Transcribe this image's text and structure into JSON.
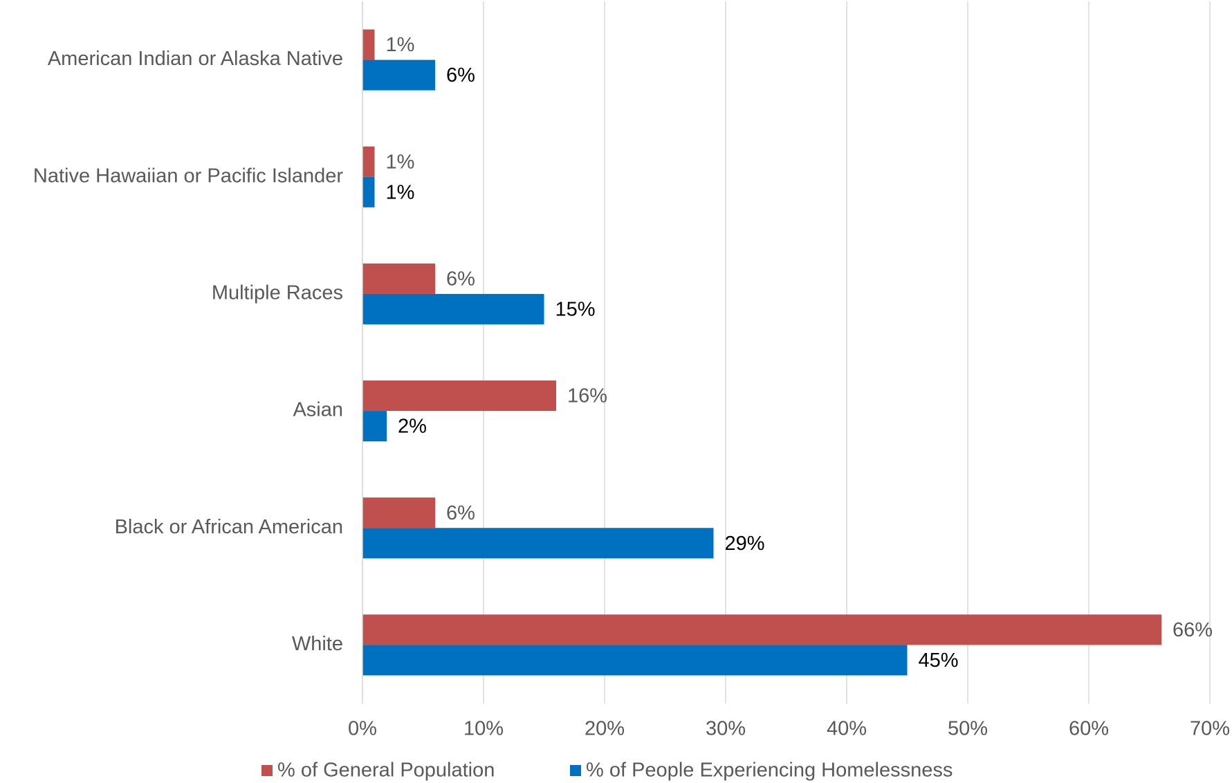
{
  "chart_data": {
    "type": "hbar",
    "categories": [
      "American Indian or Alaska Native",
      "Native Hawaiian or Pacific Islander",
      "Multiple Races",
      "Asian",
      "Black or African American",
      "White"
    ],
    "series": [
      {
        "name": "% of General Population",
        "color": "#c0504d",
        "values": [
          1,
          1,
          6,
          16,
          6,
          66
        ],
        "value_labels": [
          "1%",
          "1%",
          "6%",
          "16%",
          "6%",
          "66%"
        ]
      },
      {
        "name": "% of People Experiencing Homelessness",
        "color": "#0070c0",
        "values": [
          6,
          1,
          15,
          2,
          29,
          45
        ],
        "value_labels": [
          "6%",
          "1%",
          "15%",
          "2%",
          "29%",
          "45%"
        ]
      }
    ],
    "xlim": [
      0,
      70
    ],
    "xticks": [
      {
        "value": 0,
        "label": "0%"
      },
      {
        "value": 10,
        "label": "10%"
      },
      {
        "value": 20,
        "label": "20%"
      },
      {
        "value": 30,
        "label": "30%"
      },
      {
        "value": 40,
        "label": "40%"
      },
      {
        "value": 50,
        "label": "50%"
      },
      {
        "value": 60,
        "label": "60%"
      },
      {
        "value": 70,
        "label": "70%"
      }
    ],
    "grid": true,
    "legend": "bottom"
  }
}
